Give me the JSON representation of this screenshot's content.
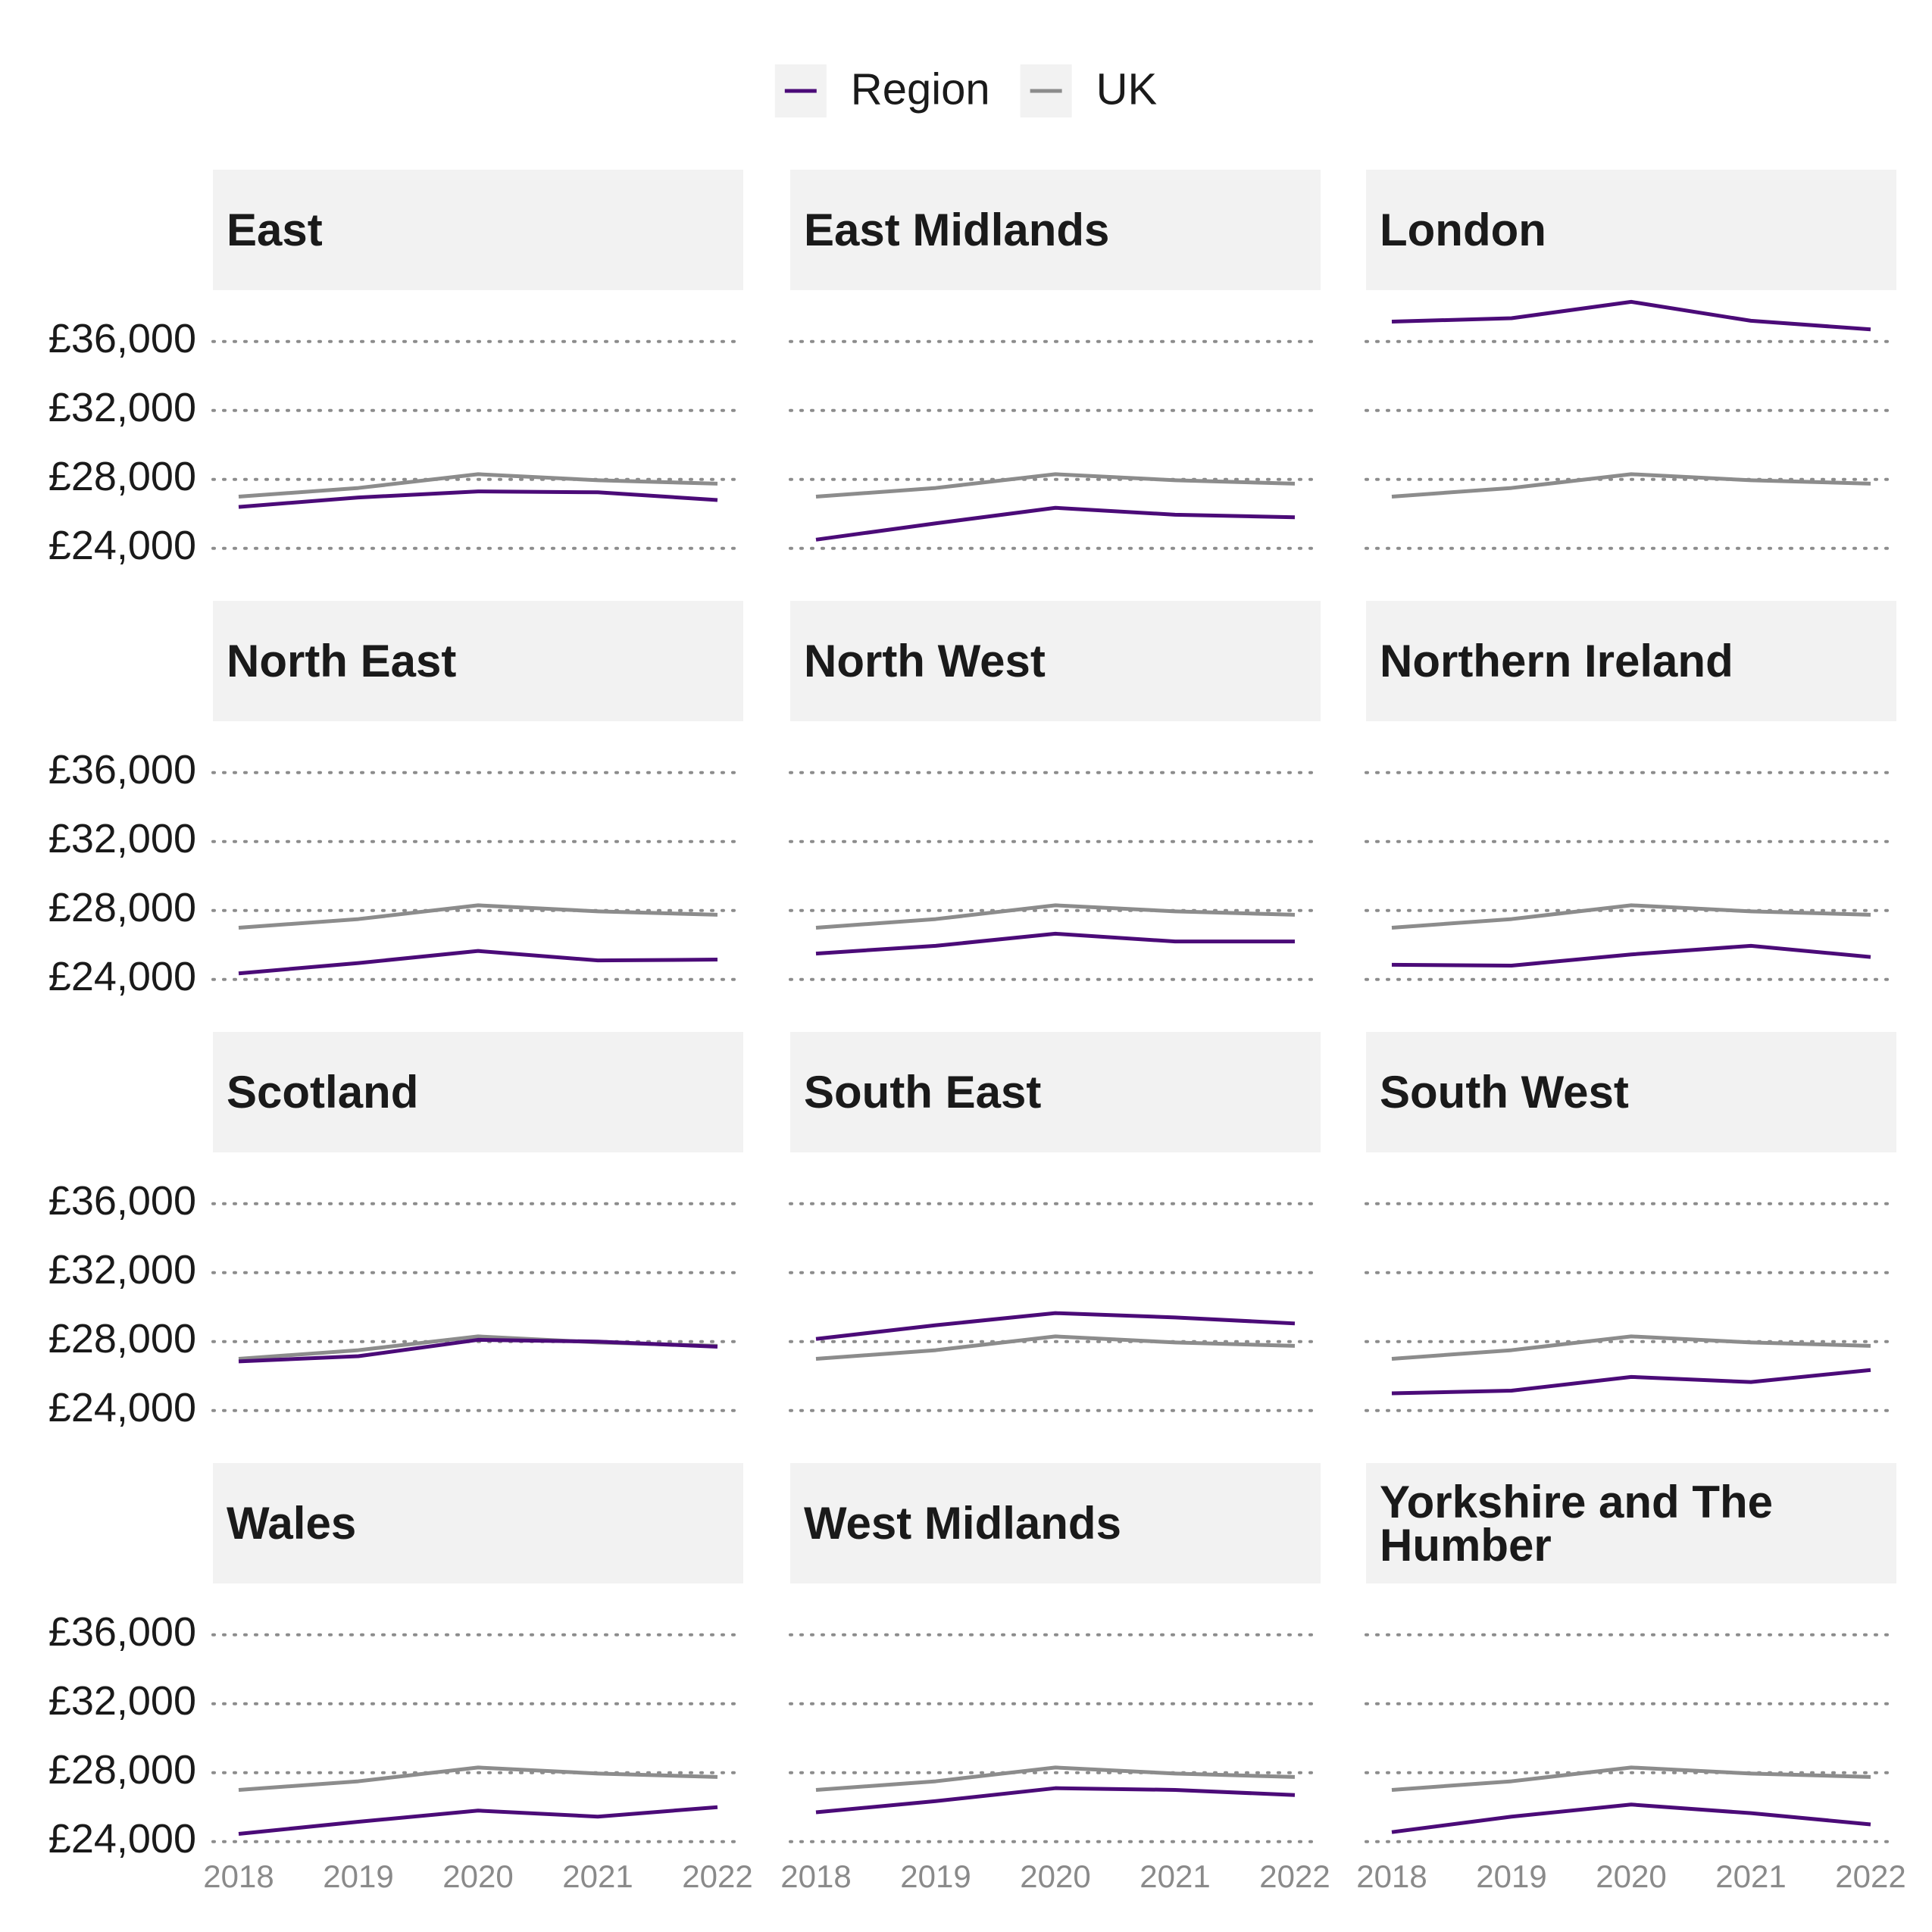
{
  "chart_data": [
    {
      "type": "line",
      "title": "East",
      "x": [
        2018,
        2019,
        2020,
        2021,
        2022
      ],
      "xlim": [
        2018,
        2022
      ],
      "series": [
        {
          "name": "Region",
          "color": "#4b0b78",
          "values": [
            26400,
            26950,
            27300,
            27250,
            26800
          ]
        },
        {
          "name": "UK",
          "color": "#8c8c8c",
          "values": [
            27000,
            27500,
            28300,
            27950,
            27750
          ]
        }
      ],
      "ylim": [
        22800,
        38800
      ],
      "yticks": [
        {
          "value": 24000,
          "label": "£24,000"
        },
        {
          "value": 28000,
          "label": "£28,000"
        },
        {
          "value": 32000,
          "label": "£32,000"
        },
        {
          "value": 36000,
          "label": "£36,000"
        }
      ],
      "grid": true
    },
    {
      "type": "line",
      "title": "East Midlands",
      "x": [
        2018,
        2019,
        2020,
        2021,
        2022
      ],
      "xlim": [
        2018,
        2022
      ],
      "series": [
        {
          "name": "Region",
          "color": "#4b0b78",
          "values": [
            24500,
            25450,
            26350,
            25950,
            25800
          ]
        },
        {
          "name": "UK",
          "color": "#8c8c8c",
          "values": [
            27000,
            27500,
            28300,
            27950,
            27750
          ]
        }
      ],
      "ylim": [
        22800,
        38800
      ],
      "yticks": [
        24000,
        28000,
        32000,
        36000
      ],
      "grid": true
    },
    {
      "type": "line",
      "title": "London",
      "x": [
        2018,
        2019,
        2020,
        2021,
        2022
      ],
      "xlim": [
        2018,
        2022
      ],
      "series": [
        {
          "name": "Region",
          "color": "#4b0b78",
          "values": [
            37150,
            37350,
            38300,
            37200,
            36700
          ]
        },
        {
          "name": "UK",
          "color": "#8c8c8c",
          "values": [
            27000,
            27500,
            28300,
            27950,
            27750
          ]
        }
      ],
      "ylim": [
        22800,
        38800
      ],
      "yticks": [
        24000,
        28000,
        32000,
        36000
      ],
      "grid": true
    },
    {
      "type": "line",
      "title": "North East",
      "x": [
        2018,
        2019,
        2020,
        2021,
        2022
      ],
      "xlim": [
        2018,
        2022
      ],
      "series": [
        {
          "name": "Region",
          "color": "#4b0b78",
          "values": [
            24350,
            24950,
            25650,
            25100,
            25150
          ]
        },
        {
          "name": "UK",
          "color": "#8c8c8c",
          "values": [
            27000,
            27500,
            28300,
            27950,
            27750
          ]
        }
      ],
      "ylim": [
        22800,
        38800
      ],
      "yticks": [
        {
          "value": 24000,
          "label": "£24,000"
        },
        {
          "value": 28000,
          "label": "£28,000"
        },
        {
          "value": 32000,
          "label": "£32,000"
        },
        {
          "value": 36000,
          "label": "£36,000"
        }
      ],
      "grid": true
    },
    {
      "type": "line",
      "title": "North West",
      "x": [
        2018,
        2019,
        2020,
        2021,
        2022
      ],
      "xlim": [
        2018,
        2022
      ],
      "series": [
        {
          "name": "Region",
          "color": "#4b0b78",
          "values": [
            25500,
            25950,
            26650,
            26200,
            26200
          ]
        },
        {
          "name": "UK",
          "color": "#8c8c8c",
          "values": [
            27000,
            27500,
            28300,
            27950,
            27750
          ]
        }
      ],
      "ylim": [
        22800,
        38800
      ],
      "yticks": [
        24000,
        28000,
        32000,
        36000
      ],
      "grid": true
    },
    {
      "type": "line",
      "title": "Northern Ireland",
      "x": [
        2018,
        2019,
        2020,
        2021,
        2022
      ],
      "xlim": [
        2018,
        2022
      ],
      "series": [
        {
          "name": "Region",
          "color": "#4b0b78",
          "values": [
            24850,
            24800,
            25450,
            25950,
            25300
          ]
        },
        {
          "name": "UK",
          "color": "#8c8c8c",
          "values": [
            27000,
            27500,
            28300,
            27950,
            27750
          ]
        }
      ],
      "ylim": [
        22800,
        38800
      ],
      "yticks": [
        24000,
        28000,
        32000,
        36000
      ],
      "grid": true
    },
    {
      "type": "line",
      "title": "Scotland",
      "x": [
        2018,
        2019,
        2020,
        2021,
        2022
      ],
      "xlim": [
        2018,
        2022
      ],
      "series": [
        {
          "name": "Region",
          "color": "#4b0b78",
          "values": [
            26850,
            27150,
            28100,
            28000,
            27700
          ]
        },
        {
          "name": "UK",
          "color": "#8c8c8c",
          "values": [
            27000,
            27500,
            28300,
            27950,
            27750
          ]
        }
      ],
      "ylim": [
        22800,
        38800
      ],
      "yticks": [
        {
          "value": 24000,
          "label": "£24,000"
        },
        {
          "value": 28000,
          "label": "£28,000"
        },
        {
          "value": 32000,
          "label": "£32,000"
        },
        {
          "value": 36000,
          "label": "£36,000"
        }
      ],
      "grid": true
    },
    {
      "type": "line",
      "title": "South East",
      "x": [
        2018,
        2019,
        2020,
        2021,
        2022
      ],
      "xlim": [
        2018,
        2022
      ],
      "series": [
        {
          "name": "Region",
          "color": "#4b0b78",
          "values": [
            28150,
            28950,
            29650,
            29400,
            29050
          ]
        },
        {
          "name": "UK",
          "color": "#8c8c8c",
          "values": [
            27000,
            27500,
            28300,
            27950,
            27750
          ]
        }
      ],
      "ylim": [
        22800,
        38800
      ],
      "yticks": [
        24000,
        28000,
        32000,
        36000
      ],
      "grid": true
    },
    {
      "type": "line",
      "title": "South West",
      "x": [
        2018,
        2019,
        2020,
        2021,
        2022
      ],
      "xlim": [
        2018,
        2022
      ],
      "series": [
        {
          "name": "Region",
          "color": "#4b0b78",
          "values": [
            25000,
            25150,
            25950,
            25650,
            26350
          ]
        },
        {
          "name": "UK",
          "color": "#8c8c8c",
          "values": [
            27000,
            27500,
            28300,
            27950,
            27750
          ]
        }
      ],
      "ylim": [
        22800,
        38800
      ],
      "yticks": [
        24000,
        28000,
        32000,
        36000
      ],
      "grid": true
    },
    {
      "type": "line",
      "title": "Wales",
      "x": [
        2018,
        2019,
        2020,
        2021,
        2022
      ],
      "xlim": [
        2018,
        2022
      ],
      "series": [
        {
          "name": "Region",
          "color": "#4b0b78",
          "values": [
            24450,
            25150,
            25800,
            25450,
            26000
          ]
        },
        {
          "name": "UK",
          "color": "#8c8c8c",
          "values": [
            27000,
            27500,
            28300,
            27950,
            27750
          ]
        }
      ],
      "ylim": [
        22800,
        38800
      ],
      "yticks": [
        {
          "value": 24000,
          "label": "£24,000"
        },
        {
          "value": 28000,
          "label": "£28,000"
        },
        {
          "value": 32000,
          "label": "£32,000"
        },
        {
          "value": 36000,
          "label": "£36,000"
        }
      ],
      "xticks": [
        2018,
        2019,
        2020,
        2021,
        2022
      ],
      "grid": true
    },
    {
      "type": "line",
      "title": "West Midlands",
      "x": [
        2018,
        2019,
        2020,
        2021,
        2022
      ],
      "xlim": [
        2018,
        2022
      ],
      "series": [
        {
          "name": "Region",
          "color": "#4b0b78",
          "values": [
            25700,
            26350,
            27100,
            27000,
            26700
          ]
        },
        {
          "name": "UK",
          "color": "#8c8c8c",
          "values": [
            27000,
            27500,
            28300,
            27950,
            27750
          ]
        }
      ],
      "ylim": [
        22800,
        38800
      ],
      "yticks": [
        24000,
        28000,
        32000,
        36000
      ],
      "xticks": [
        2018,
        2019,
        2020,
        2021,
        2022
      ],
      "grid": true
    },
    {
      "type": "line",
      "title": "Yorkshire and The Humber",
      "x": [
        2018,
        2019,
        2020,
        2021,
        2022
      ],
      "xlim": [
        2018,
        2022
      ],
      "series": [
        {
          "name": "Region",
          "color": "#4b0b78",
          "values": [
            24550,
            25450,
            26150,
            25650,
            25000
          ]
        },
        {
          "name": "UK",
          "color": "#8c8c8c",
          "values": [
            27000,
            27500,
            28300,
            27950,
            27750
          ]
        }
      ],
      "ylim": [
        22800,
        38800
      ],
      "yticks": [
        24000,
        28000,
        32000,
        36000
      ],
      "xticks": [
        2018,
        2019,
        2020,
        2021,
        2022
      ],
      "grid": true
    }
  ]
}
